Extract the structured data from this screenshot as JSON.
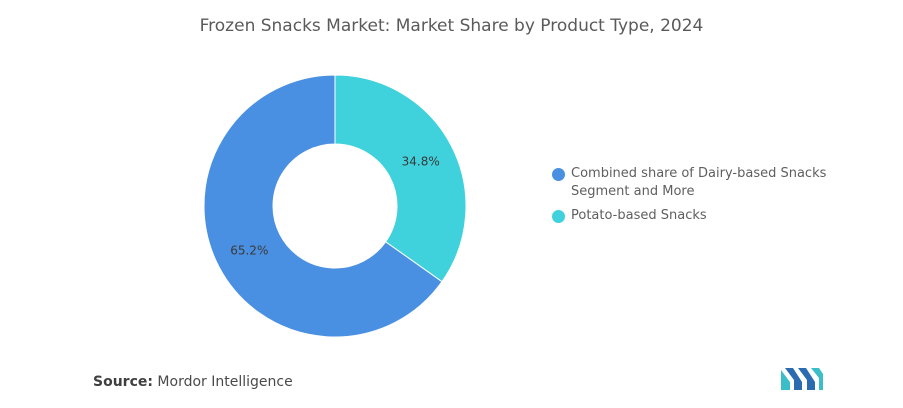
{
  "chart_data": {
    "type": "pie",
    "title": "Frozen Snacks Market: Market Share by Product Type, 2024",
    "categories": [
      "Combined share of Dairy-based Snacks Segment and More",
      "Potato-based Snacks"
    ],
    "values": [
      65.2,
      34.8
    ],
    "value_labels": [
      "65.2%",
      "34.8%"
    ],
    "colors": [
      "#4A90E2",
      "#3FD1DC"
    ],
    "donut": true,
    "legend_position": "right"
  },
  "legend": {
    "items": [
      {
        "label": "Combined share of Dairy-based Snacks Segment and More",
        "color": "#4A90E2"
      },
      {
        "label": "Potato-based Snacks",
        "color": "#3FD1DC"
      }
    ]
  },
  "footer": {
    "source_label": "Source:",
    "source_value": "Mordor Intelligence"
  },
  "logo": {
    "icon": "mordor-intelligence-logo-icon",
    "colors": [
      "#3ABFC9",
      "#2B6CB0"
    ]
  }
}
